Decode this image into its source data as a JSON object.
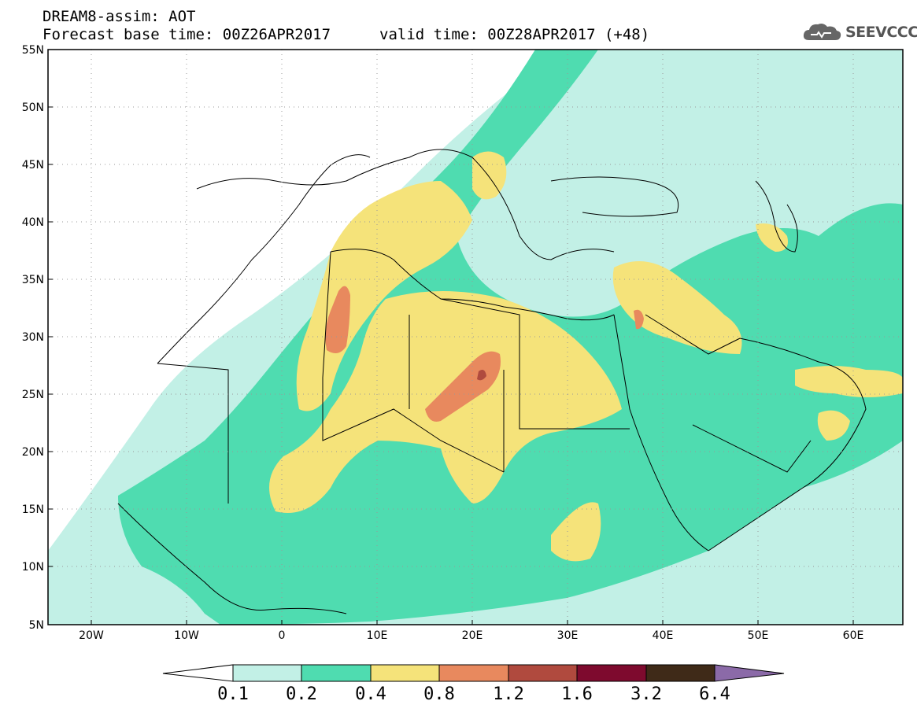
{
  "header": {
    "title": "DREAM8-assim: AOT",
    "base_time": "Forecast base time: 00Z26APR2017",
    "valid_time": "valid time: 00Z28APR2017 (+48)"
  },
  "logo": {
    "text": "SEEVCCC",
    "icon": "cloud-icon"
  },
  "axes": {
    "lat_labels": [
      "55N",
      "50N",
      "45N",
      "40N",
      "35N",
      "30N",
      "25N",
      "20N",
      "15N",
      "10N",
      "5N"
    ],
    "lon_labels": [
      "20W",
      "10W",
      "0",
      "10E",
      "20E",
      "30E",
      "40E",
      "50E",
      "60E"
    ]
  },
  "colorbar": {
    "labels": [
      "0.1",
      "0.2",
      "0.4",
      "0.8",
      "1.2",
      "1.6",
      "3.2",
      "6.4"
    ],
    "colors": [
      "#ffffff",
      "#c2f0e6",
      "#4fdcb0",
      "#f5e37a",
      "#e8895e",
      "#b04a3e",
      "#7e0a2e",
      "#3f2a18",
      "#8b6aa8"
    ]
  },
  "map_colors": {
    "c01": "#c2f0e6",
    "c02": "#4fdcb0",
    "c04": "#f5e37a",
    "c08": "#e8895e",
    "c12": "#b04a3e"
  }
}
